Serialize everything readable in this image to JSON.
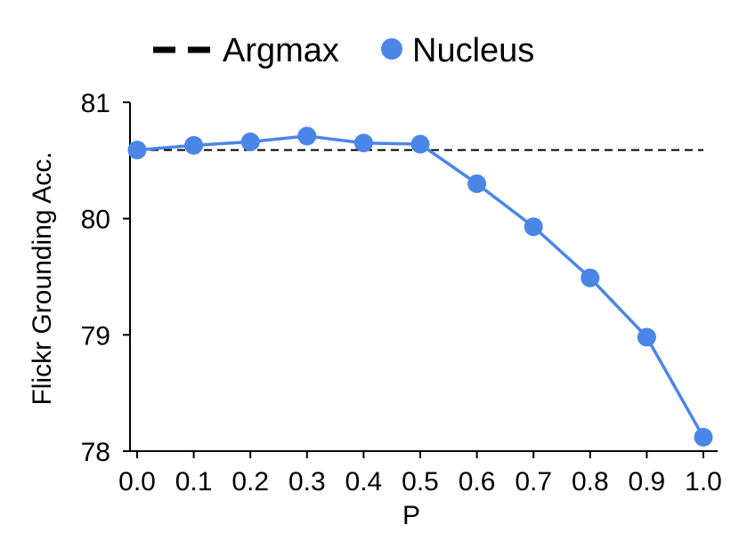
{
  "colors": {
    "nucleus": "#4A86E8",
    "argmax": "#000000",
    "axis": "#000000"
  },
  "chart_data": {
    "type": "line",
    "xlabel": "P",
    "ylabel": "Flickr Grounding Acc.",
    "xlim": [
      0.0,
      1.0
    ],
    "ylim": [
      78,
      81
    ],
    "xticks": [
      "0.0",
      "0.1",
      "0.2",
      "0.3",
      "0.4",
      "0.5",
      "0.6",
      "0.7",
      "0.8",
      "0.9",
      "1.0"
    ],
    "yticks": [
      "78",
      "79",
      "80",
      "81"
    ],
    "legend": {
      "placement": "top",
      "entries": [
        "Argmax",
        "Nucleus"
      ]
    },
    "grid": false,
    "series": [
      {
        "name": "Nucleus",
        "style": "line-marker",
        "x": [
          0.0,
          0.1,
          0.2,
          0.3,
          0.4,
          0.5,
          0.6,
          0.7,
          0.8,
          0.9,
          1.0
        ],
        "y": [
          80.59,
          80.63,
          80.66,
          80.71,
          80.65,
          80.64,
          80.3,
          79.93,
          79.49,
          78.98,
          78.12
        ]
      },
      {
        "name": "Argmax",
        "style": "dashed",
        "x": [
          0.0,
          1.0
        ],
        "y": [
          80.59,
          80.59
        ]
      }
    ]
  }
}
